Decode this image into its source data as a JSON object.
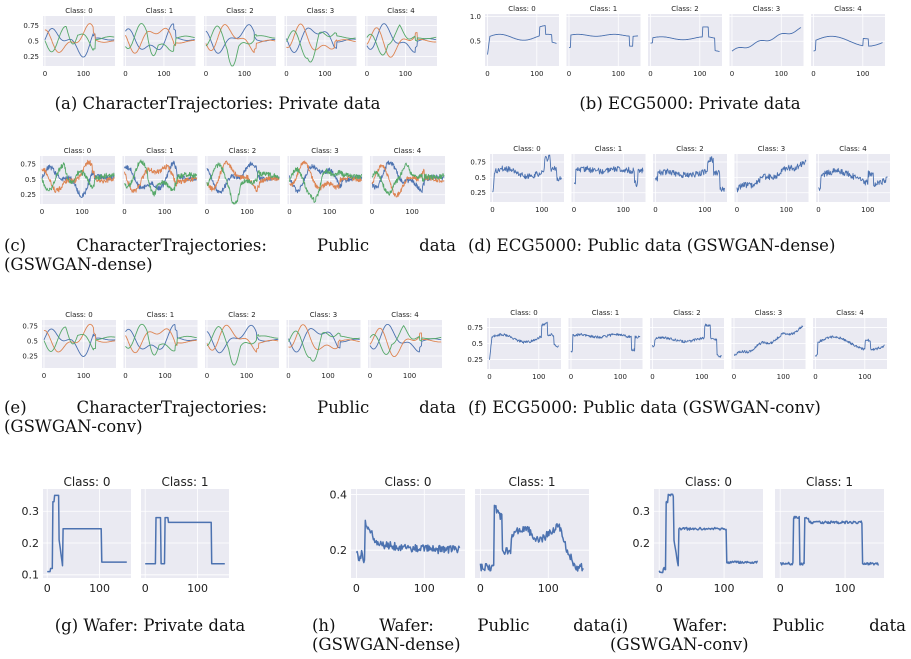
{
  "colors": {
    "blue": "#4c72b0",
    "orange": "#dd8452",
    "green": "#55a868",
    "panel_bg": "#eaeaf2",
    "grid": "#ffffff"
  },
  "captions": {
    "a": "(a) CharacterTrajectories: Private data",
    "b": "(b) ECG5000: Private data",
    "c_1": "(c) CharacterTrajectories: Public data",
    "c_2": "(GSWGAN-dense)",
    "d": "(d) ECG5000: Public data (GSWGAN-dense)",
    "e_1": "(e) CharacterTrajectories: Public data",
    "e_2": "(GSWGAN-conv)",
    "f": "(f) ECG5000: Public data (GSWGAN-conv)",
    "g": "(g) Wafer: Private data",
    "h_1": "(h) Wafer: Public data",
    "h_2": "(GSWGAN-dense)",
    "i_1": "(i) Wafer: Public data",
    "i_2": "(GSWGAN-conv)"
  },
  "chart_data": [
    {
      "id": "a",
      "type": "line",
      "panels": [
        "Class: 0",
        "Class: 1",
        "Class: 2",
        "Class: 3",
        "Class: 4"
      ],
      "yticks": [
        0.25,
        0.5,
        0.75
      ],
      "ylim": [
        0.1,
        0.9
      ],
      "xticks": [
        0,
        100
      ],
      "xlim": [
        -5,
        182
      ],
      "series": [
        {
          "color": "blue"
        },
        {
          "color": "orange"
        },
        {
          "color": "green"
        }
      ],
      "kind": "ct",
      "noise": 0.0
    },
    {
      "id": "b",
      "type": "line",
      "panels": [
        "Class: 0",
        "Class: 1",
        "Class: 2",
        "Class: 3",
        "Class: 4"
      ],
      "yticks": [
        0.5,
        1.0
      ],
      "ylim": [
        0.0,
        1.05
      ],
      "xticks": [
        0,
        100
      ],
      "xlim": [
        -5,
        145
      ],
      "series": [
        {
          "color": "blue"
        }
      ],
      "kind": "ecg",
      "noise": 0.0
    },
    {
      "id": "c",
      "type": "line",
      "panels": [
        "Class: 0",
        "Class: 1",
        "Class: 2",
        "Class: 3",
        "Class: 4"
      ],
      "yticks": [
        0.25,
        0.5,
        0.75
      ],
      "ylim": [
        0.1,
        0.88
      ],
      "xticks": [
        0,
        100
      ],
      "xlim": [
        -5,
        182
      ],
      "series": [
        {
          "color": "blue"
        },
        {
          "color": "orange"
        },
        {
          "color": "green"
        }
      ],
      "kind": "ct",
      "noise": 0.04
    },
    {
      "id": "d",
      "type": "line",
      "panels": [
        "Class: 0",
        "Class: 1",
        "Class: 2",
        "Class: 3",
        "Class: 4"
      ],
      "yticks": [
        0.25,
        0.5,
        0.75
      ],
      "ylim": [
        0.1,
        0.88
      ],
      "xticks": [
        0,
        100
      ],
      "xlim": [
        -5,
        145
      ],
      "series": [
        {
          "color": "blue"
        }
      ],
      "kind": "ecg",
      "noise": 0.05
    },
    {
      "id": "e",
      "type": "line",
      "panels": [
        "Class: 0",
        "Class: 1",
        "Class: 2",
        "Class: 3",
        "Class: 4"
      ],
      "yticks": [
        0.25,
        0.5,
        0.75
      ],
      "ylim": [
        0.05,
        0.85
      ],
      "xticks": [
        0,
        100
      ],
      "xlim": [
        -5,
        182
      ],
      "series": [
        {
          "color": "blue"
        },
        {
          "color": "orange"
        },
        {
          "color": "green"
        }
      ],
      "kind": "ct",
      "noise": 0.0
    },
    {
      "id": "f",
      "type": "line",
      "panels": [
        "Class: 0",
        "Class: 1",
        "Class: 2",
        "Class: 3",
        "Class: 4"
      ],
      "yticks": [
        0.25,
        0.5,
        0.75
      ],
      "ylim": [
        0.1,
        0.9
      ],
      "xticks": [
        0,
        100
      ],
      "xlim": [
        -5,
        145
      ],
      "series": [
        {
          "color": "blue"
        }
      ],
      "kind": "ecg",
      "noise": 0.02
    },
    {
      "id": "g",
      "type": "line",
      "panels": [
        "Class: 0",
        "Class: 1"
      ],
      "yticks": [
        0.1,
        0.2,
        0.3
      ],
      "ylim": [
        0.09,
        0.37
      ],
      "xticks": [
        0,
        100
      ],
      "xlim": [
        -8,
        160
      ],
      "series": [
        {
          "color": "blue"
        }
      ],
      "kind": "wafer",
      "noise": 0.0
    },
    {
      "id": "h",
      "type": "line",
      "panels": [
        "Class: 0",
        "Class: 1"
      ],
      "yticks": [
        0.2,
        0.4
      ],
      "ylim": [
        0.1,
        0.42
      ],
      "xticks": [
        0,
        100
      ],
      "xlim": [
        -8,
        160
      ],
      "series": [
        {
          "color": "blue"
        }
      ],
      "kind": "waferdense",
      "noise": 0.015
    },
    {
      "id": "i",
      "type": "line",
      "panels": [
        "Class: 0",
        "Class: 1"
      ],
      "yticks": [
        0.2,
        0.3
      ],
      "ylim": [
        0.09,
        0.37
      ],
      "xticks": [
        0,
        100
      ],
      "xlim": [
        -8,
        160
      ],
      "series": [
        {
          "color": "blue"
        }
      ],
      "kind": "wafer",
      "noise": 0.004
    }
  ]
}
